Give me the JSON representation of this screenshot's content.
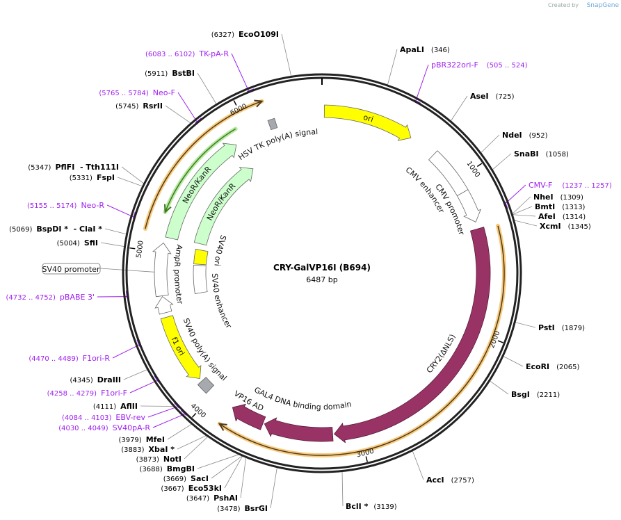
{
  "branding": {
    "created_by": "Created by",
    "product": "SnapGene"
  },
  "plasmid": {
    "name": "CRY-GalVP16I (B694)",
    "length_label": "6487 bp",
    "length": 6487
  },
  "ticks": [
    "1000",
    "2000",
    "3000",
    "4000",
    "5000",
    "6000"
  ],
  "features": [
    {
      "name": "ori",
      "start": 15,
      "end": 600,
      "dir": 1,
      "color": "#ffff00",
      "label": "ori"
    },
    {
      "name": "CMV enhancer",
      "start": 780,
      "end": 1085,
      "dir": 0,
      "color": "#ffffff",
      "label": "CMV enhancer"
    },
    {
      "name": "CMV promoter",
      "start": 1085,
      "end": 1290,
      "dir": 1,
      "color": "#ffffff",
      "label": "CMV promoter"
    },
    {
      "name": "CRY2(ΔNLS)",
      "start": 1335,
      "end": 3165,
      "dir": 1,
      "color": "#993366",
      "label": "CRY2(ΔNLS)"
    },
    {
      "name": "GAL4 DNA binding domain",
      "start": 3175,
      "end": 3620,
      "dir": 1,
      "color": "#993366",
      "label": "GAL4 DNA binding domain"
    },
    {
      "name": "VP16 AD",
      "start": 3630,
      "end": 3850,
      "dir": 1,
      "color": "#993366",
      "label": "VP16 AD"
    },
    {
      "name": "HSV TK poly(A) signal",
      "start": 6135,
      "end": 6180,
      "dir": 0,
      "color": "#a6a9ad",
      "label": "HSV TK poly(A) signal"
    },
    {
      "name": "NeoR/KanR",
      "start": 5100,
      "end": 5880,
      "dir": 1,
      "color": "#ccffcc",
      "label": "NeoR/KanR"
    },
    {
      "name": "NeoR/KanR",
      "start": 5110,
      "end": 5885,
      "dir": 1,
      "color": "#ccffcc",
      "label": "NeoR/KanR"
    },
    {
      "name": "AmpR promoter",
      "start": 4720,
      "end": 5060,
      "dir": 1,
      "color": "#ffffff",
      "label": "AmpR promoter"
    },
    {
      "name": "AmpR promoter",
      "start": 4610,
      "end": 4715,
      "dir": 1,
      "color": "#ffffff"
    },
    {
      "name": "f1 ori",
      "start": 4130,
      "end": 4580,
      "dir": -1,
      "color": "#ffff00",
      "label": "f1 ori"
    },
    {
      "name": "SV40 poly(A) signal",
      "start": 4035,
      "end": 4110,
      "dir": 0,
      "color": "#a6a9ad",
      "label": "SV40 poly(A) signal"
    },
    {
      "name": "SV40 ori",
      "start": 4940,
      "end": 5060,
      "dir": 0,
      "color": "#ffff00",
      "label": "SV40 ori"
    },
    {
      "name": "SV40 enhancer",
      "start": 4700,
      "end": 4930,
      "dir": 0,
      "color": "#ffffff",
      "label": "SV40 enhancer"
    }
  ],
  "orfs": [
    {
      "start": 1350,
      "end": 3860,
      "dir": 1,
      "color": "#f9c97a"
    },
    {
      "start": 5120,
      "end": 6140,
      "dir": 1,
      "color": "#f9c97a"
    },
    {
      "start": 5250,
      "end": 5930,
      "dir": -1,
      "color": "#b5e8a0"
    }
  ],
  "annotations": {
    "sv40_promoter": "SV40 promoter",
    "sv40_promoter_pos": 4870
  },
  "enzymes": [
    {
      "name": "EcoO109I",
      "position": "(6327)"
    },
    {
      "name": "BstBI",
      "position": "(5911)"
    },
    {
      "name": "RsrII",
      "position": "(5745)"
    },
    {
      "name": "PflFI  - Tth111I",
      "position": "(5347)"
    },
    {
      "name": "FspI",
      "position": "(5331)"
    },
    {
      "name": "BspDI *  - ClaI *",
      "position": "(5069)"
    },
    {
      "name": "SfiI",
      "position": "(5004)"
    },
    {
      "name": "DraIII",
      "position": "(4345)"
    },
    {
      "name": "AflII",
      "position": "(4111)"
    },
    {
      "name": "MfeI",
      "position": "(3979)"
    },
    {
      "name": "XbaI *",
      "position": "(3883)"
    },
    {
      "name": "NotI",
      "position": "(3873)"
    },
    {
      "name": "BmgBI",
      "position": "(3688)"
    },
    {
      "name": "SacI",
      "position": "(3669)"
    },
    {
      "name": "Eco53kI",
      "position": "(3667)"
    },
    {
      "name": "PshAI",
      "position": "(3647)"
    },
    {
      "name": "BsrGI",
      "position": "(3478)"
    },
    {
      "name": "ApaLI",
      "position": "(346)"
    },
    {
      "name": "AseI",
      "position": "(725)"
    },
    {
      "name": "NdeI",
      "position": "(952)"
    },
    {
      "name": "SnaBI",
      "position": "(1058)"
    },
    {
      "name": "NheI",
      "position": "(1309)"
    },
    {
      "name": "BmtI",
      "position": "(1313)"
    },
    {
      "name": "AfeI",
      "position": "(1314)"
    },
    {
      "name": "XcmI",
      "position": "(1345)"
    },
    {
      "name": "PstI",
      "position": "(1879)"
    },
    {
      "name": "EcoRI",
      "position": "(2065)"
    },
    {
      "name": "BsgI",
      "position": "(2211)"
    },
    {
      "name": "AccI",
      "position": "(2757)"
    },
    {
      "name": "BclI *",
      "position": "(3139)"
    }
  ],
  "primers": [
    {
      "name": "TK-pA-R",
      "range": "(6083 .. 6102)"
    },
    {
      "name": "Neo-F",
      "range": "(5765 .. 5784)"
    },
    {
      "name": "Neo-R",
      "range": "(5155 .. 5174)"
    },
    {
      "name": "pBABE 3'",
      "range": "(4732 .. 4752)"
    },
    {
      "name": "F1ori-R",
      "range": "(4470 .. 4489)"
    },
    {
      "name": "F1ori-F",
      "range": "(4258 .. 4279)"
    },
    {
      "name": "EBV-rev",
      "range": "(4084 .. 4103)"
    },
    {
      "name": "SV40pA-R",
      "range": "(4030 .. 4049)"
    },
    {
      "name": "pBR322ori-F",
      "range": "(505 .. 524)"
    },
    {
      "name": "CMV-F",
      "range": "(1237 .. 1257)"
    }
  ],
  "colors": {
    "backbone": "#222222",
    "primer": "#a020f0",
    "leader": "#888888"
  }
}
